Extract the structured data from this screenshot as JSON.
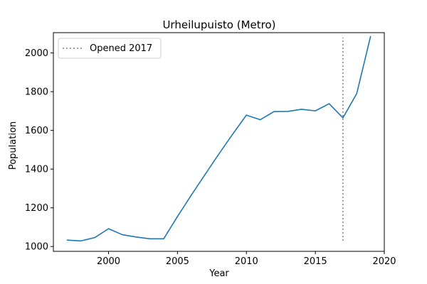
{
  "chart_data": {
    "type": "line",
    "title": "Urheilupuisto (Metro)",
    "xlabel": "Year",
    "ylabel": "Population",
    "xlim": [
      1996,
      2020
    ],
    "ylim": [
      975,
      2105
    ],
    "xticks": [
      2000,
      2005,
      2010,
      2015,
      2020
    ],
    "yticks": [
      1000,
      1200,
      1400,
      1600,
      1800,
      2000
    ],
    "grid": false,
    "legend_position": "top-left",
    "series": [
      {
        "color": "#1f77b4",
        "x": [
          1997,
          1998,
          1999,
          2000,
          2001,
          2002,
          2003,
          2004,
          2005,
          2006,
          2007,
          2008,
          2009,
          2010,
          2011,
          2012,
          2013,
          2014,
          2015,
          2016,
          2017,
          2018,
          2019
        ],
        "values": [
          1033,
          1029,
          1046,
          1092,
          1061,
          1049,
          1040,
          1040,
          1155,
          1265,
          1372,
          1478,
          1580,
          1679,
          1655,
          1697,
          1698,
          1709,
          1701,
          1738,
          1665,
          1790,
          2085
        ]
      }
    ],
    "annotations": [
      {
        "label": "Opened 2017",
        "type": "vline",
        "x": 2017,
        "y_range": [
          1030,
          2080
        ],
        "color": "#808080",
        "style": "dotted"
      }
    ]
  }
}
